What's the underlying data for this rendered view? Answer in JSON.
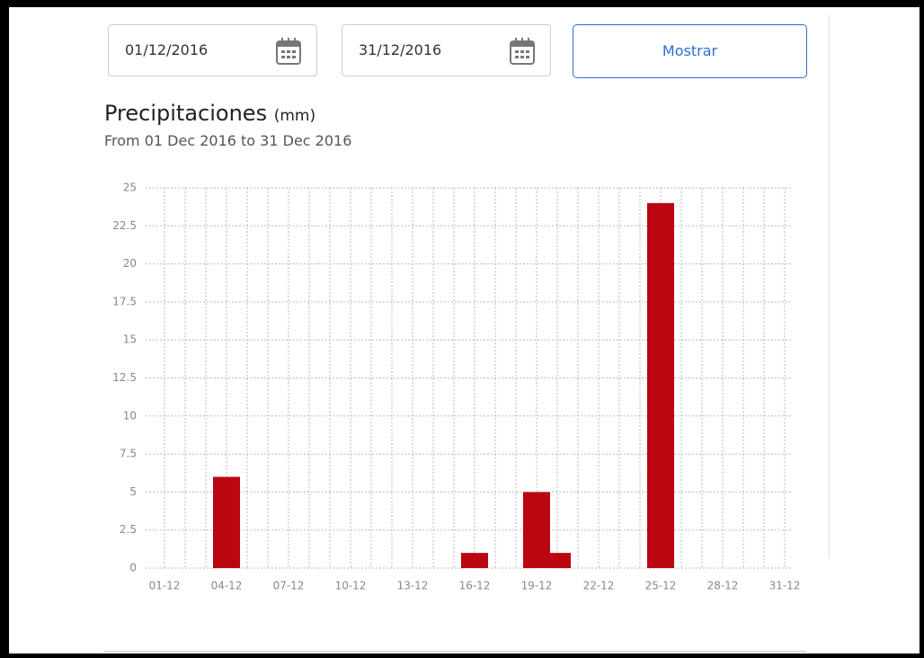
{
  "controls": {
    "start_date": "01/12/2016",
    "end_date": "31/12/2016",
    "button": "Mostrar"
  },
  "chart_data": {
    "type": "bar",
    "title": "Precipitaciones",
    "unit": "(mm)",
    "subtitle": "From 01 Dec 2016 to 31 Dec 2016",
    "categories": [
      "01-12",
      null,
      null,
      "04-12",
      null,
      null,
      "07-12",
      null,
      null,
      "10-12",
      null,
      null,
      "13-12",
      null,
      null,
      "16-12",
      null,
      null,
      "19-12",
      null,
      null,
      "22-12",
      null,
      null,
      "25-12",
      null,
      null,
      "28-12",
      null,
      null,
      "31-12"
    ],
    "values": [
      0,
      0,
      0,
      6,
      0,
      0,
      0,
      0,
      0,
      0,
      0,
      0,
      0,
      0,
      0,
      1,
      0,
      0,
      5,
      1,
      0,
      0,
      0,
      0,
      24,
      0,
      0,
      0,
      0,
      0,
      0
    ],
    "color": "#bb0511",
    "ylim": [
      0,
      25
    ],
    "yticks": [
      0,
      2.5,
      5,
      7.5,
      10,
      12.5,
      15,
      17.5,
      20,
      22.5,
      25
    ],
    "grid": true
  }
}
